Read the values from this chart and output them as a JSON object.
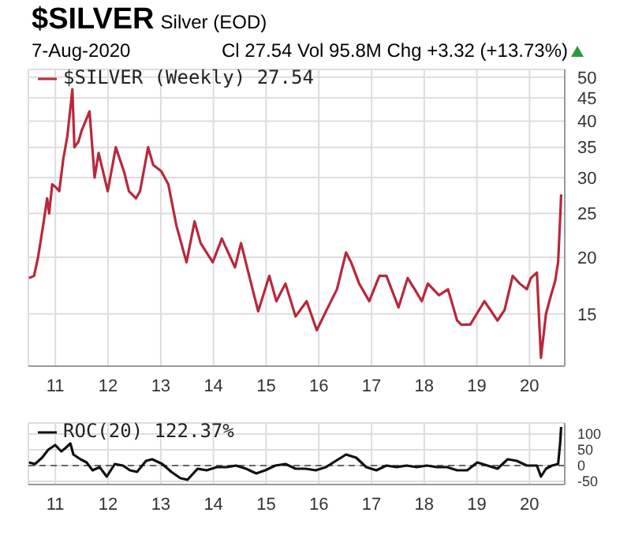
{
  "chart_data": [
    {
      "type": "line",
      "title": "$SILVER",
      "subtitle": "Silver (EOD)",
      "annotations": [
        "7-Aug-2020",
        "Cl 27.54 Vol 95.8M Chg +3.32 (+13.73%)"
      ],
      "series": [
        {
          "name": "$SILVER (Weekly) 27.54",
          "color": "#b8283c",
          "x": [
            "2010-07-02",
            "2010-08-06",
            "2010-09-03",
            "2010-10-08",
            "2010-11-05",
            "2010-11-19",
            "2010-12-10",
            "2011-01-07",
            "2011-01-28",
            "2011-02-25",
            "2011-03-25",
            "2011-04-29",
            "2011-05-13",
            "2011-06-10",
            "2011-07-01",
            "2011-08-26",
            "2011-09-30",
            "2011-10-28",
            "2011-12-30",
            "2012-02-24",
            "2012-04-20",
            "2012-05-25",
            "2012-07-13",
            "2012-08-10",
            "2012-10-05",
            "2012-11-09",
            "2013-01-04",
            "2013-02-22",
            "2013-04-19",
            "2013-06-28",
            "2013-08-23",
            "2013-10-04",
            "2013-12-27",
            "2014-02-28",
            "2014-05-30",
            "2014-07-11",
            "2014-09-19",
            "2014-11-07",
            "2015-01-23",
            "2015-03-13",
            "2015-05-15",
            "2015-07-24",
            "2015-10-09",
            "2015-12-18",
            "2016-03-04",
            "2016-05-06",
            "2016-07-08",
            "2016-08-12",
            "2016-10-07",
            "2016-12-16",
            "2017-02-24",
            "2017-04-14",
            "2017-07-07",
            "2017-09-08",
            "2017-10-27",
            "2017-12-15",
            "2018-01-26",
            "2018-04-13",
            "2018-06-15",
            "2018-08-17",
            "2018-09-14",
            "2018-11-16",
            "2019-02-22",
            "2019-05-24",
            "2019-07-12",
            "2019-09-06",
            "2019-10-25",
            "2019-12-13",
            "2020-01-10",
            "2020-02-21",
            "2020-03-20",
            "2020-04-24",
            "2020-05-29",
            "2020-06-26",
            "2020-07-17",
            "2020-07-31",
            "2020-08-07"
          ],
          "values": [
            18,
            18.2,
            20,
            23.5,
            27,
            25,
            29,
            28.5,
            28,
            33,
            37,
            47,
            35,
            36,
            38,
            42,
            30,
            34,
            28,
            35,
            31,
            28,
            27,
            28,
            35,
            32,
            31,
            29,
            23.5,
            19.5,
            24,
            21.5,
            19.5,
            22,
            19,
            21.5,
            17.5,
            15.2,
            18.2,
            16,
            17.5,
            14.8,
            16,
            13.8,
            15.5,
            17,
            20.5,
            19.5,
            17.5,
            16,
            18.2,
            18.2,
            15.5,
            18,
            17,
            16,
            17.5,
            16.5,
            17,
            14.5,
            14.2,
            14.2,
            16,
            14.5,
            15.3,
            18.2,
            17.5,
            17,
            18,
            18.5,
            12,
            15,
            16.5,
            17.7,
            19.5,
            24.3,
            27.54
          ]
        }
      ],
      "xlim": [
        "2010-06-28",
        "2020-09-01"
      ],
      "xticks": [
        {
          "value": "2011-01-01",
          "label": "11"
        },
        {
          "value": "2012-01-01",
          "label": "12"
        },
        {
          "value": "2013-01-01",
          "label": "13"
        },
        {
          "value": "2014-01-01",
          "label": "14"
        },
        {
          "value": "2015-01-01",
          "label": "15"
        },
        {
          "value": "2016-01-01",
          "label": "16"
        },
        {
          "value": "2017-01-01",
          "label": "17"
        },
        {
          "value": "2018-01-01",
          "label": "18"
        },
        {
          "value": "2019-01-01",
          "label": "19"
        },
        {
          "value": "2020-01-01",
          "label": "20"
        }
      ],
      "ylim": [
        11.5,
        52
      ],
      "yticks": [
        15,
        20,
        25,
        30,
        35,
        40,
        45,
        50
      ],
      "log": true,
      "grid": true,
      "legend": "top left",
      "marker": "none",
      "line_style": "solid"
    },
    {
      "type": "line",
      "series": [
        {
          "name": "ROC(20) 122.37%",
          "color": "#111111",
          "x": [
            "2010-07-02",
            "2010-08-13",
            "2010-10-01",
            "2010-11-12",
            "2010-12-31",
            "2011-02-11",
            "2011-03-11",
            "2011-04-15",
            "2011-05-06",
            "2011-06-24",
            "2011-08-05",
            "2011-09-16",
            "2011-11-04",
            "2011-12-23",
            "2012-02-17",
            "2012-04-13",
            "2012-06-01",
            "2012-07-20",
            "2012-09-21",
            "2012-11-02",
            "2013-01-11",
            "2013-03-15",
            "2013-05-17",
            "2013-07-05",
            "2013-09-13",
            "2013-11-15",
            "2014-01-24",
            "2014-04-04",
            "2014-06-06",
            "2014-08-15",
            "2014-10-24",
            "2014-12-26",
            "2015-03-06",
            "2015-05-15",
            "2015-07-24",
            "2015-10-02",
            "2015-12-11",
            "2016-02-19",
            "2016-04-29",
            "2016-07-08",
            "2016-09-16",
            "2016-11-25",
            "2017-02-03",
            "2017-04-14",
            "2017-06-23",
            "2017-09-01",
            "2017-11-10",
            "2018-01-19",
            "2018-03-30",
            "2018-06-08",
            "2018-08-17",
            "2018-10-26",
            "2019-01-04",
            "2019-03-15",
            "2019-05-24",
            "2019-08-02",
            "2019-10-04",
            "2019-12-13",
            "2020-02-21",
            "2020-03-20",
            "2020-04-24",
            "2020-06-05",
            "2020-07-17",
            "2020-07-31",
            "2020-08-07"
          ],
          "values": [
            10,
            5,
            25,
            50,
            65,
            45,
            55,
            70,
            35,
            20,
            10,
            -15,
            -5,
            -35,
            5,
            0,
            -15,
            -20,
            15,
            20,
            5,
            -20,
            -40,
            -45,
            -10,
            -15,
            -5,
            -5,
            0,
            -10,
            -25,
            -15,
            0,
            5,
            -10,
            -10,
            -15,
            -5,
            15,
            35,
            25,
            -5,
            -15,
            0,
            -5,
            0,
            -5,
            0,
            -5,
            -5,
            -15,
            -15,
            10,
            0,
            -10,
            20,
            15,
            0,
            0,
            -35,
            -10,
            0,
            5,
            70,
            122.37
          ]
        }
      ],
      "xlim": [
        "2010-06-28",
        "2020-09-01"
      ],
      "xticks": [
        {
          "value": "2011-01-01",
          "label": "11"
        },
        {
          "value": "2012-01-01",
          "label": "12"
        },
        {
          "value": "2013-01-01",
          "label": "13"
        },
        {
          "value": "2014-01-01",
          "label": "14"
        },
        {
          "value": "2015-01-01",
          "label": "15"
        },
        {
          "value": "2016-01-01",
          "label": "16"
        },
        {
          "value": "2017-01-01",
          "label": "17"
        },
        {
          "value": "2018-01-01",
          "label": "18"
        },
        {
          "value": "2019-01-01",
          "label": "19"
        },
        {
          "value": "2020-01-01",
          "label": "20"
        }
      ],
      "ylim": [
        -60,
        135
      ],
      "yticks": [
        -50,
        0,
        50,
        100
      ],
      "grid": true,
      "legend": "top left",
      "marker": "none",
      "line_style": "solid",
      "ref_lines": [
        {
          "axis": "y",
          "value": 0,
          "line_style": "dashed",
          "color": "#666666"
        }
      ]
    }
  ]
}
